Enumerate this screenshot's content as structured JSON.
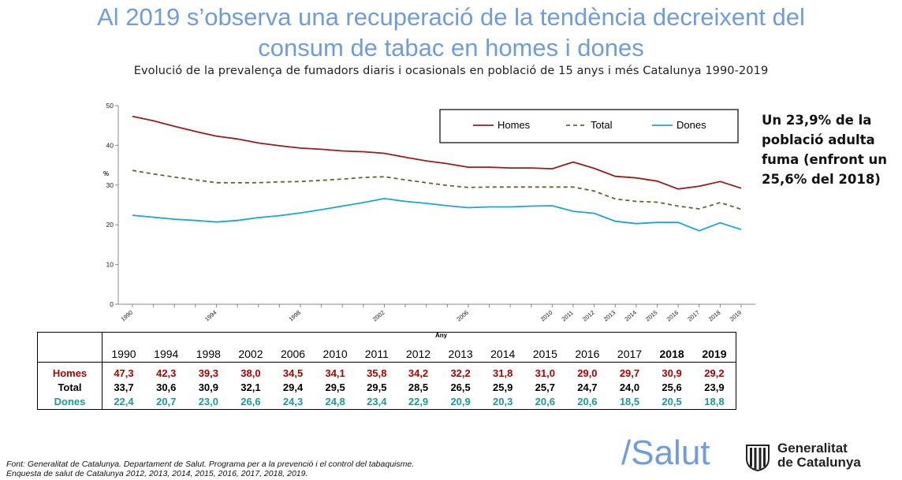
{
  "slide": {
    "title_line1": "Al 2019 s’observa una recuperació de la tendència decreixent del",
    "title_line2": "consum de tabac en homes i dones",
    "subtitle": "Evolució de la prevalença de fumadors diaris i ocasionals en població de 15 anys i més Catalunya 1990-2019",
    "side_note": "Un 23,9% de la població adulta fuma (enfront un 25,6% del 2018)",
    "source_line1": "Font: Generalitat de Catalunya. Departament de Salut. Programa per a la prevenció i el control del tabaquisme.",
    "source_line2": "Enquesta de salut de Catalunya  2012, 2013, 2014, 2015, 2016, 2017, 2018, 2019.",
    "salut_logo_text": "/Salut",
    "gencat_line1": "Generalitat",
    "gencat_line2": "de Catalunya"
  },
  "colors": {
    "title": "#6f9ce0",
    "homes": "#9b1c1c",
    "total": "#6b6030",
    "dones": "#1aa6d4"
  },
  "chart_data": {
    "type": "line",
    "ylabel": "%",
    "ylim": [
      0,
      50
    ],
    "yticks": [
      0,
      10,
      20,
      30,
      40,
      50
    ],
    "grid": false,
    "legend_position": "top-right",
    "x_tick_labels": [
      "1990",
      "1994",
      "1998",
      "2002",
      "2006",
      "2010",
      "2011",
      "2012",
      "2013",
      "2014",
      "2015",
      "2016",
      "2017",
      "2018",
      "2019"
    ],
    "series": [
      {
        "name": "Homes",
        "style": "solid",
        "points": [
          [
            1990,
            47.3
          ],
          [
            1991,
            46.2
          ],
          [
            1992,
            44.8
          ],
          [
            1993,
            43.5
          ],
          [
            1994,
            42.3
          ],
          [
            1995,
            41.6
          ],
          [
            1996,
            40.6
          ],
          [
            1997,
            39.9
          ],
          [
            1998,
            39.3
          ],
          [
            1999,
            39.0
          ],
          [
            2000,
            38.6
          ],
          [
            2001,
            38.4
          ],
          [
            2002,
            38.0
          ],
          [
            2003,
            37.0
          ],
          [
            2004,
            36.1
          ],
          [
            2005,
            35.4
          ],
          [
            2006,
            34.5
          ],
          [
            2007,
            34.5
          ],
          [
            2008,
            34.3
          ],
          [
            2009,
            34.3
          ],
          [
            2010,
            34.1
          ],
          [
            2011,
            35.8
          ],
          [
            2012,
            34.2
          ],
          [
            2013,
            32.2
          ],
          [
            2014,
            31.8
          ],
          [
            2015,
            31.0
          ],
          [
            2016,
            29.0
          ],
          [
            2017,
            29.7
          ],
          [
            2018,
            30.9
          ],
          [
            2019,
            29.2
          ]
        ]
      },
      {
        "name": "Total",
        "style": "dashed",
        "points": [
          [
            1990,
            33.7
          ],
          [
            1991,
            32.8
          ],
          [
            1992,
            32.0
          ],
          [
            1993,
            31.3
          ],
          [
            1994,
            30.6
          ],
          [
            1995,
            30.6
          ],
          [
            1996,
            30.6
          ],
          [
            1997,
            30.8
          ],
          [
            1998,
            30.9
          ],
          [
            1999,
            31.2
          ],
          [
            2000,
            31.5
          ],
          [
            2001,
            31.9
          ],
          [
            2002,
            32.1
          ],
          [
            2003,
            31.3
          ],
          [
            2004,
            30.6
          ],
          [
            2005,
            29.9
          ],
          [
            2006,
            29.4
          ],
          [
            2007,
            29.5
          ],
          [
            2008,
            29.5
          ],
          [
            2009,
            29.5
          ],
          [
            2010,
            29.5
          ],
          [
            2011,
            29.5
          ],
          [
            2012,
            28.5
          ],
          [
            2013,
            26.5
          ],
          [
            2014,
            25.9
          ],
          [
            2015,
            25.7
          ],
          [
            2016,
            24.7
          ],
          [
            2017,
            24.0
          ],
          [
            2018,
            25.6
          ],
          [
            2019,
            23.9
          ]
        ]
      },
      {
        "name": "Dones",
        "style": "solid",
        "points": [
          [
            1990,
            22.4
          ],
          [
            1991,
            21.9
          ],
          [
            1992,
            21.4
          ],
          [
            1993,
            21.1
          ],
          [
            1994,
            20.7
          ],
          [
            1995,
            21.1
          ],
          [
            1996,
            21.8
          ],
          [
            1997,
            22.3
          ],
          [
            1998,
            23.0
          ],
          [
            1999,
            23.8
          ],
          [
            2000,
            24.7
          ],
          [
            2001,
            25.6
          ],
          [
            2002,
            26.6
          ],
          [
            2003,
            25.9
          ],
          [
            2004,
            25.4
          ],
          [
            2005,
            24.8
          ],
          [
            2006,
            24.3
          ],
          [
            2007,
            24.5
          ],
          [
            2008,
            24.5
          ],
          [
            2009,
            24.7
          ],
          [
            2010,
            24.8
          ],
          [
            2011,
            23.4
          ],
          [
            2012,
            22.9
          ],
          [
            2013,
            20.9
          ],
          [
            2014,
            20.3
          ],
          [
            2015,
            20.6
          ],
          [
            2016,
            20.6
          ],
          [
            2017,
            18.5
          ],
          [
            2018,
            20.5
          ],
          [
            2019,
            18.8
          ]
        ]
      }
    ]
  },
  "table": {
    "header_label": "Any",
    "years": [
      "1990",
      "1994",
      "1998",
      "2002",
      "2006",
      "2010",
      "2011",
      "2012",
      "2013",
      "2014",
      "2015",
      "2016",
      "2017",
      "2018",
      "2019"
    ],
    "rows": [
      {
        "label": "Homes",
        "values": [
          "47,3",
          "42,3",
          "39,3",
          "38,0",
          "34,5",
          "34,1",
          "35,8",
          "34,2",
          "32,2",
          "31,8",
          "31,0",
          "29,0",
          "29,7",
          "30,9",
          "29,2"
        ]
      },
      {
        "label": "Total",
        "values": [
          "33,7",
          "30,6",
          "30,9",
          "32,1",
          "29,4",
          "29,5",
          "29,5",
          "28,5",
          "26,5",
          "25,9",
          "25,7",
          "24,7",
          "24,0",
          "25,6",
          "23,9"
        ]
      },
      {
        "label": "Dones",
        "values": [
          "22,4",
          "20,7",
          "23,0",
          "26,6",
          "24,3",
          "24,8",
          "23,4",
          "22,9",
          "20,9",
          "20,3",
          "20,6",
          "20,6",
          "18,5",
          "20,5",
          "18,8"
        ]
      }
    ]
  }
}
